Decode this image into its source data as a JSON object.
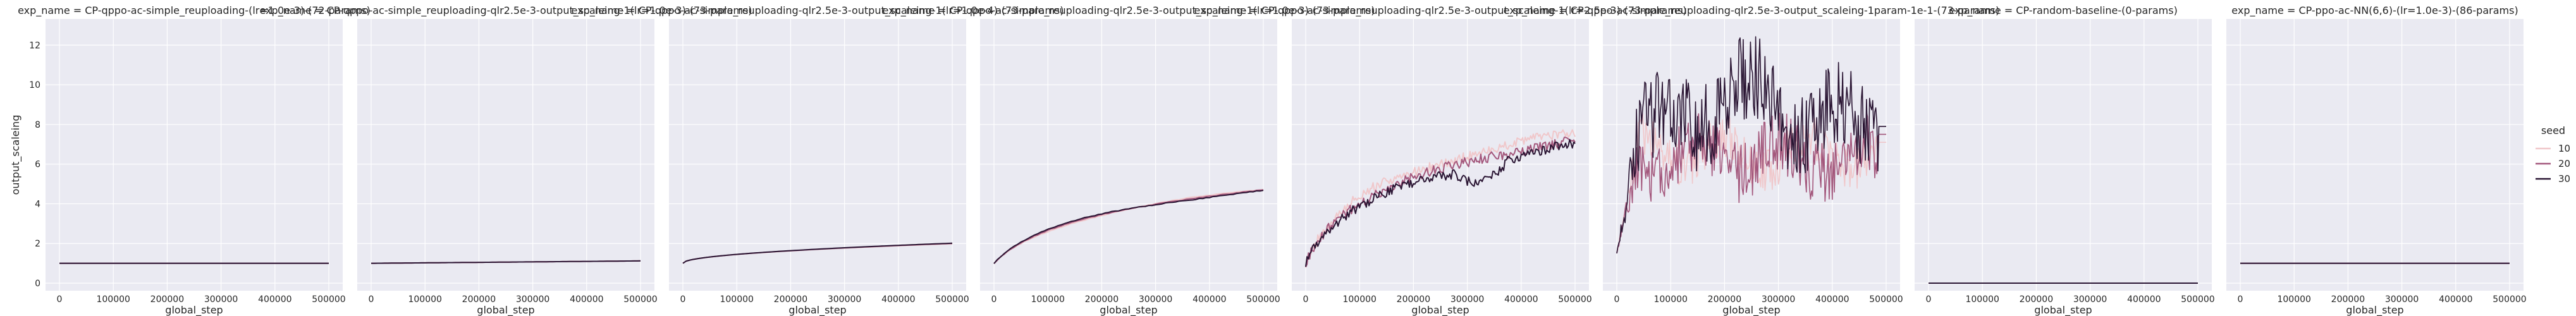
{
  "chart_data": {
    "type": "line",
    "facet_var": "exp_name",
    "xlabel": "global_step",
    "ylabel": "output_scaleing",
    "xlim": [
      0,
      500000
    ],
    "ylim": [
      0,
      13
    ],
    "x_ticks": [
      0,
      100000,
      200000,
      300000,
      400000,
      500000
    ],
    "x_tick_labels": [
      "0",
      "100000",
      "200000",
      "300000",
      "400000",
      "500000"
    ],
    "y_ticks": [
      0,
      2,
      4,
      6,
      8,
      10,
      12
    ],
    "y_tick_labels": [
      "0",
      "2",
      "4",
      "6",
      "8",
      "10",
      "12"
    ],
    "grid": true,
    "legend": {
      "title": "seed",
      "position": "right",
      "entries": [
        {
          "label": "10",
          "color": "#f0c7ca"
        },
        {
          "label": "20",
          "color": "#a3577c"
        },
        {
          "label": "30",
          "color": "#2a1533"
        }
      ]
    },
    "panels": [
      {
        "title": "exp_name = CP-qppo-ac-simple_reuploading-(lr=1.0e-3)-(72-params)",
        "shape": "flat",
        "v0": 1.0,
        "v1": 1.0
      },
      {
        "title": "exp_name = CP-qppo-ac-simple_reuploading-qlr2.5e-3-output_scaleing-1(lr=1.0e-3)-(73-params)",
        "shape": "linear",
        "v0": 1.0,
        "v1": 1.12
      },
      {
        "title": "exp_name = CP-qppo-ac-simple_reuploading-qlr2.5e-3-output_scaleing-1(lr=1.0e-4)-(73-params)",
        "shape": "sqrt",
        "v0": 1.0,
        "v1": 2.0
      },
      {
        "title": "exp_name = CP-qppo-ac-simple_reuploading-qlr2.5e-3-output_scaleing-1(lr=1.0e-3)-(73-params)",
        "shape": "log",
        "v0": 1.0,
        "v1": 4.7
      },
      {
        "title": "exp_name = CP-qppo-ac-simple_reuploading-qlr2.5e-3-output_scaleing-1(lr=2.5e-3)-(73-params)",
        "shape": "noisy",
        "v0": 1.0,
        "v1": 7.3
      },
      {
        "title": "exp_name = CP-qppo-ac-simple_reuploading-qlr2.5e-3-output_scaleing-1param-1e-1-(73-params)",
        "shape": "chaotic",
        "v0": 1.5,
        "v1": 7.5
      },
      {
        "title": "exp_name = CP-random-baseline-(0-params)",
        "shape": "flat",
        "v0": 0.0,
        "v1": 0.0
      },
      {
        "title": "exp_name = CP-ppo-ac-NN(6,6)-(lr=1.0e-3)-(86-params)",
        "shape": "flat",
        "v0": 1.0,
        "v1": 1.0
      }
    ],
    "series": [
      {
        "name": "10",
        "color": "#f0c7ca"
      },
      {
        "name": "20",
        "color": "#a3577c"
      },
      {
        "name": "30",
        "color": "#2a1533"
      }
    ]
  }
}
